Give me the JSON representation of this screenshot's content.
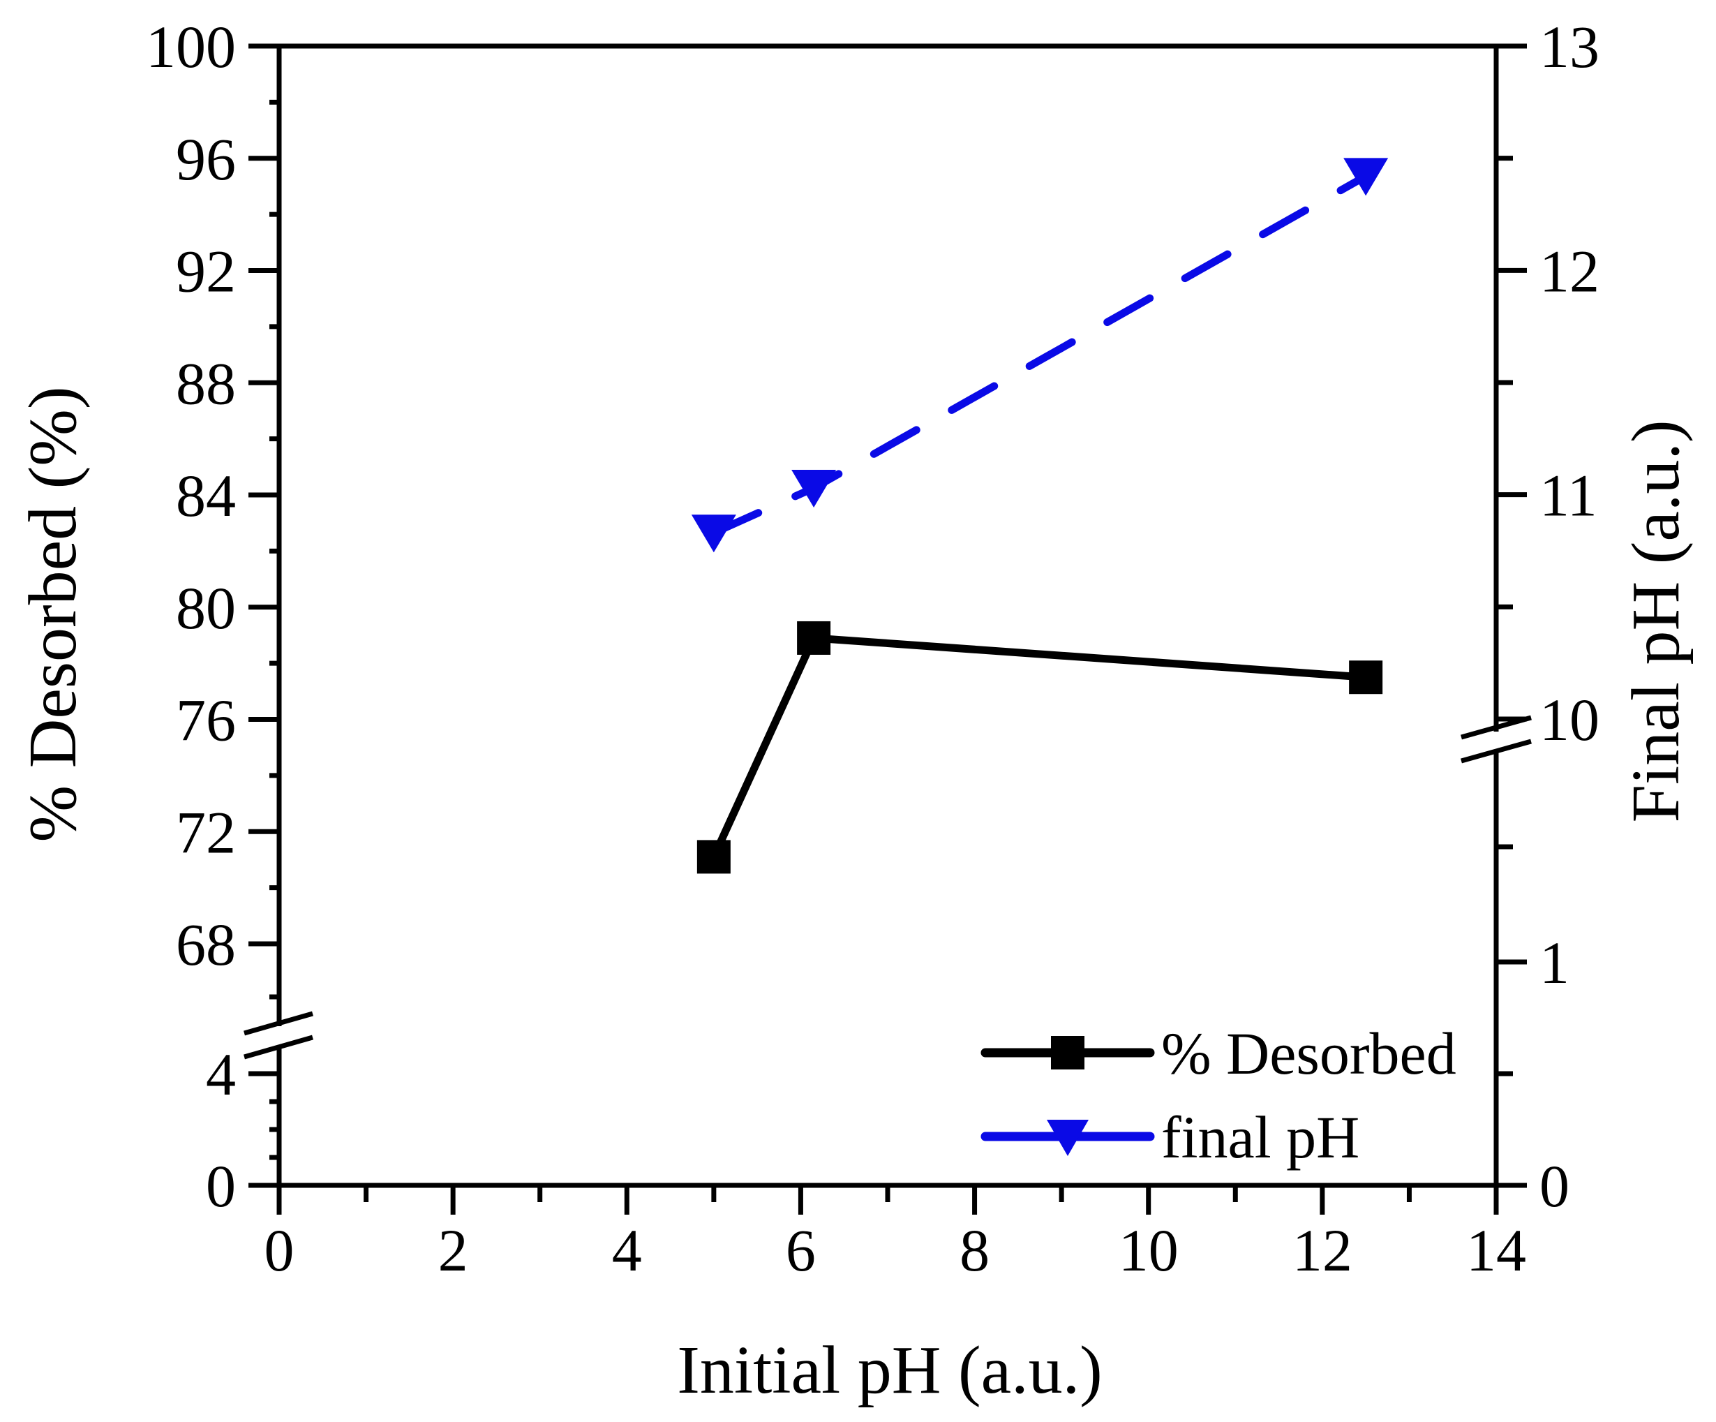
{
  "chart_data": {
    "type": "line",
    "title": "",
    "xlabel": "Initial pH (a.u.)",
    "ylabel_left": "% Desorbed (%)",
    "ylabel_right": "Final pH (a.u.)",
    "x_ticks": [
      "0",
      "2",
      "4",
      "6",
      "8",
      "10",
      "12",
      "14"
    ],
    "x_range": [
      0,
      14
    ],
    "y_left_ticks": [
      "0",
      "4",
      "68",
      "72",
      "76",
      "80",
      "84",
      "88",
      "92",
      "96",
      "100"
    ],
    "y_left_break": "between 4 and 68",
    "y_right_ticks": [
      "0",
      "1",
      "10",
      "11",
      "12",
      "13"
    ],
    "y_right_break": "between 1 and 10",
    "series": [
      {
        "name": "% Desorbed",
        "axis": "left",
        "color": "#000000",
        "marker": "square",
        "line": "solid",
        "x": [
          5.0,
          6.15,
          12.5
        ],
        "y": [
          71.1,
          78.9,
          77.5
        ]
      },
      {
        "name": "final pH",
        "axis": "right",
        "color": "#0a0ae6",
        "marker": "triangle-down",
        "line": "dashed",
        "x": [
          5.0,
          6.15,
          12.5
        ],
        "y": [
          10.83,
          11.03,
          12.42
        ]
      }
    ],
    "legend": [
      "% Desorbed",
      "final pH"
    ],
    "legend_position": "bottom-right"
  }
}
